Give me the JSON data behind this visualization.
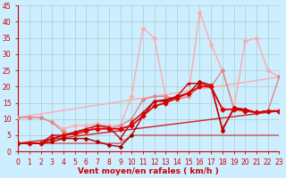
{
  "xlabel": "Vent moyen/en rafales ( km/h )",
  "xlim": [
    0,
    23
  ],
  "ylim": [
    0,
    45
  ],
  "yticks": [
    0,
    5,
    10,
    15,
    20,
    25,
    30,
    35,
    40,
    45
  ],
  "xticks": [
    0,
    1,
    2,
    3,
    4,
    5,
    6,
    7,
    8,
    9,
    10,
    11,
    12,
    13,
    14,
    15,
    16,
    17,
    18,
    19,
    20,
    21,
    22,
    23
  ],
  "background_color": "#cceeff",
  "grid_color": "#aacccc",
  "lines": [
    {
      "x": [
        0,
        23
      ],
      "y": [
        10.5,
        23
      ],
      "color": "#ffaaaa",
      "lw": 1.0,
      "marker": null,
      "ms": 0,
      "zorder": 2
    },
    {
      "x": [
        0,
        23
      ],
      "y": [
        2.5,
        12.5
      ],
      "color": "#cc2222",
      "lw": 1.0,
      "marker": null,
      "ms": 0,
      "zorder": 2
    },
    {
      "x": [
        0,
        1,
        2,
        3,
        4,
        5,
        6,
        7,
        8,
        9,
        10,
        11,
        12,
        13,
        14,
        15,
        16,
        17,
        18,
        19,
        20,
        21,
        22,
        23
      ],
      "y": [
        10.5,
        10.5,
        10.5,
        9,
        7,
        8,
        8,
        8.5,
        8,
        8,
        17,
        38,
        35,
        17,
        16,
        17,
        43,
        33,
        25,
        13,
        34,
        35,
        25,
        23
      ],
      "color": "#ffaaaa",
      "lw": 1.0,
      "marker": "D",
      "ms": 2.0,
      "zorder": 3
    },
    {
      "x": [
        0,
        1,
        2,
        3,
        4,
        5,
        6,
        7,
        8,
        9,
        10,
        11,
        12,
        13,
        14,
        15,
        16,
        17,
        18,
        19,
        20,
        21,
        22,
        23
      ],
      "y": [
        10.5,
        10.5,
        10.5,
        9,
        6,
        5,
        6,
        8,
        7,
        8,
        10,
        16,
        17,
        17,
        16,
        17,
        20,
        20,
        25,
        13.5,
        13,
        12,
        12.5,
        23
      ],
      "color": "#dd8888",
      "lw": 1.0,
      "marker": "D",
      "ms": 2.0,
      "zorder": 4
    },
    {
      "x": [
        0,
        1,
        2,
        3,
        4,
        5,
        6,
        7,
        8,
        9,
        10,
        11,
        12,
        13,
        14,
        15,
        16,
        17,
        18,
        19,
        20,
        21,
        22,
        23
      ],
      "y": [
        2.5,
        2.5,
        2.5,
        5,
        5,
        6,
        7,
        8,
        7.5,
        4,
        9,
        12,
        15.5,
        16,
        17,
        21,
        21,
        20,
        7,
        13,
        13,
        12,
        12.5,
        12.5
      ],
      "color": "#cc0000",
      "lw": 1.0,
      "marker": "+",
      "ms": 3.5,
      "zorder": 6
    },
    {
      "x": [
        0,
        1,
        2,
        3,
        4,
        5,
        6,
        7,
        8,
        9,
        10,
        11,
        12,
        13,
        14,
        15,
        16,
        17,
        18,
        19,
        20,
        21,
        22,
        23
      ],
      "y": [
        2.5,
        2.5,
        2.5,
        4,
        5,
        5.5,
        6.5,
        7,
        7,
        7,
        8,
        11,
        14,
        15,
        16.5,
        18,
        20,
        20,
        13,
        13,
        12.5,
        12,
        12.5,
        12.5
      ],
      "color": "#dd0000",
      "lw": 1.3,
      "marker": "D",
      "ms": 2.5,
      "zorder": 7
    },
    {
      "x": [
        0,
        1,
        2,
        3,
        4,
        5,
        6,
        7,
        8,
        9,
        10,
        11,
        12,
        13,
        14,
        15,
        16,
        17,
        18,
        19,
        20,
        21,
        22,
        23
      ],
      "y": [
        2.5,
        2.5,
        2.5,
        3,
        4,
        4,
        4,
        3,
        2,
        1.5,
        5,
        11,
        15.5,
        15.5,
        17,
        18,
        21.5,
        20.5,
        6.5,
        13.5,
        13,
        12,
        12.5,
        12.5
      ],
      "color": "#aa0000",
      "lw": 1.0,
      "marker": "D",
      "ms": 2.0,
      "zorder": 5
    },
    {
      "x": [
        0,
        1,
        2,
        3,
        4,
        5,
        6,
        7,
        8,
        9,
        10,
        11,
        12,
        13,
        14,
        15,
        16,
        17,
        18,
        19,
        20,
        21,
        22,
        23
      ],
      "y": [
        2.5,
        2.5,
        2.5,
        2.5,
        2.5,
        2.5,
        2.5,
        2.5,
        2.5,
        2.5,
        5,
        5,
        5,
        5,
        5,
        5,
        5,
        5,
        5,
        5,
        5,
        5,
        5,
        5
      ],
      "color": "#cc3333",
      "lw": 0.8,
      "marker": null,
      "ms": 0,
      "zorder": 2
    }
  ],
  "spine_color": "#cc0000",
  "tick_color": "#cc0000",
  "label_color": "#cc0000",
  "label_fontsize": 6.5,
  "tick_fontsize": 5.5
}
